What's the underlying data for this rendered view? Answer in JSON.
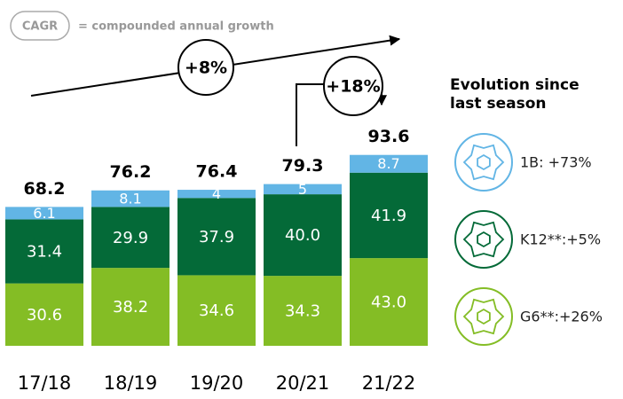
{
  "chart_data": {
    "type": "stacked_bar",
    "note_key": "CAGR",
    "note_text": "= compounded annual growth",
    "annotations": [
      "+8%",
      "+18%"
    ],
    "legend_title": "Evolution since last season",
    "categories": [
      "17/18",
      "18/19",
      "19/20",
      "20/21",
      "21/22"
    ],
    "series": [
      {
        "name": "G6**:+26%",
        "color": "#84bd25",
        "values": [
          30.6,
          38.2,
          34.6,
          34.3,
          43.0
        ],
        "value_labels": [
          "30.6",
          "38.2",
          "34.6",
          "34.3",
          "43.0"
        ]
      },
      {
        "name": "K12**:+5%",
        "color": "#046a38",
        "values": [
          31.4,
          29.9,
          37.9,
          40.0,
          41.9
        ],
        "value_labels": [
          "31.4",
          "29.9",
          "37.9",
          "40.0",
          "41.9"
        ]
      },
      {
        "name": "1B: +73%",
        "color": "#62b5e5",
        "values": [
          6.1,
          8.1,
          4,
          5,
          8.7
        ]
      }
    ],
    "totals": [
      68.2,
      76.2,
      76.4,
      79.3,
      93.6
    ],
    "ylim": [
      0,
      100
    ]
  }
}
